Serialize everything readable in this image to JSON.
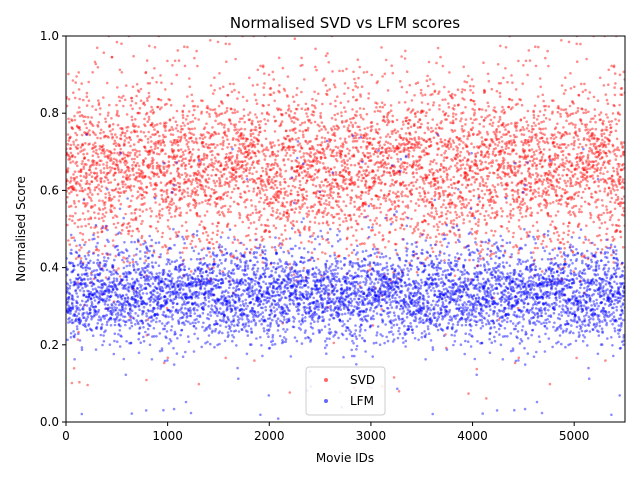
{
  "chart_data": {
    "type": "scatter",
    "title": "Normalised SVD vs LFM scores",
    "xlabel": "Movie IDs",
    "ylabel": "Normalised Score",
    "xlim": [
      0,
      5500
    ],
    "ylim": [
      0.0,
      1.0
    ],
    "x_ticks": [
      "0",
      "1000",
      "2000",
      "3000",
      "4000",
      "5000"
    ],
    "y_ticks": [
      "0.0",
      "0.2",
      "0.4",
      "0.6",
      "0.8",
      "1.0"
    ],
    "grid": false,
    "legend_position": "lower-center",
    "point_count_per_series": 5500,
    "series": [
      {
        "name": "SVD",
        "color": "#ff0000",
        "alpha": 0.45,
        "mean": 0.66,
        "spread": 0.11,
        "tail_min": 0.05,
        "tail_max": 1.0
      },
      {
        "name": "LFM",
        "color": "#0000ff",
        "alpha": 0.45,
        "mean": 0.33,
        "spread": 0.06,
        "tail_min": 0.0,
        "tail_max": 0.75
      }
    ]
  }
}
